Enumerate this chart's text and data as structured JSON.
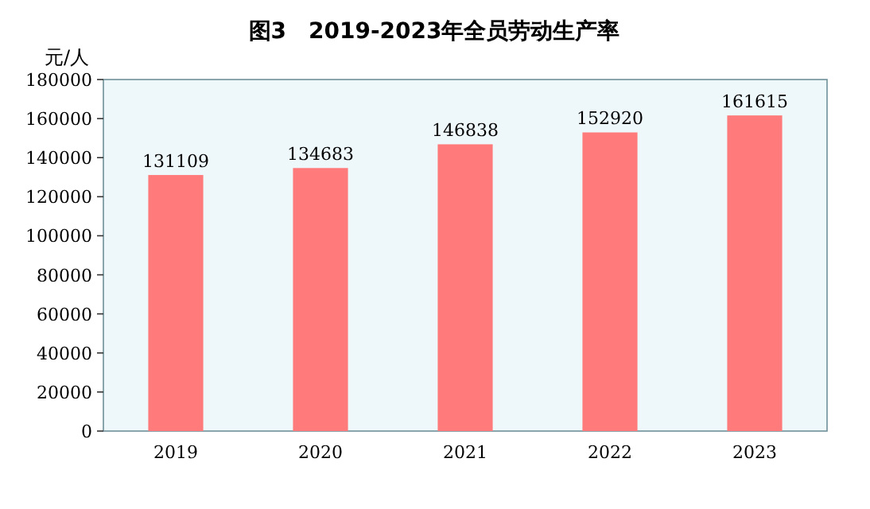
{
  "chart_data": {
    "type": "bar",
    "title": "图3　2019-2023年全员劳动生产率",
    "ylabel": "元/人",
    "categories": [
      "2019",
      "2020",
      "2021",
      "2022",
      "2023"
    ],
    "values": [
      131109,
      134683,
      146838,
      152920,
      161615
    ],
    "color": "#ff7b7b",
    "ylim": [
      0,
      180000
    ],
    "yticks": [
      0,
      20000,
      40000,
      60000,
      80000,
      100000,
      120000,
      140000,
      160000,
      180000
    ],
    "data_labels": true
  }
}
